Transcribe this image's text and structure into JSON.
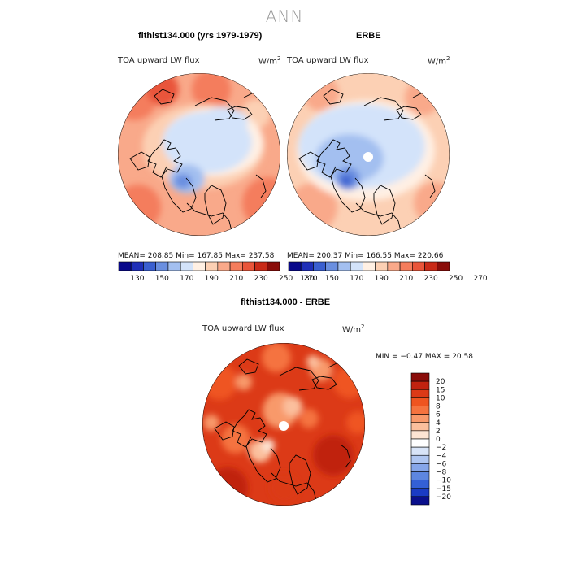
{
  "page": {
    "title": "ANN"
  },
  "panels": [
    {
      "title": "flthist134.000 (yrs 1979-1979)",
      "subtitle": "TOA upward LW flux",
      "units": "W/m",
      "units_sup": "2",
      "stats": "MEAN=  208.85   Min=  167.85   Max=  237.58",
      "colorbar_ticks": [
        "130",
        "150",
        "170",
        "190",
        "210",
        "230",
        "250",
        "270"
      ]
    },
    {
      "title": "ERBE",
      "subtitle": "TOA upward LW flux",
      "units": "W/m",
      "units_sup": "2",
      "stats": "MEAN=  200.37   Min=  166.55   Max=  220.66",
      "colorbar_ticks": [
        "130",
        "150",
        "170",
        "190",
        "210",
        "230",
        "250",
        "270"
      ]
    },
    {
      "title": "flthist134.000 - ERBE",
      "subtitle": "TOA upward LW flux",
      "units": "W/m",
      "units_sup": "2",
      "stats": "MIN =   −0.47  MAX =   20.58",
      "colorbar_ticks": [
        "20",
        "15",
        "10",
        "8",
        "6",
        "4",
        "2",
        "0",
        "−2",
        "−4",
        "−6",
        "−8",
        "−10",
        "−15",
        "−20"
      ]
    }
  ],
  "colors": {
    "abs_scale": [
      "#08088a",
      "#1f2fb8",
      "#3a5fd0",
      "#6a8fe0",
      "#a3bff0",
      "#d3e3fa",
      "#fff0e4",
      "#fcd0b4",
      "#f9a98a",
      "#f47d5d",
      "#e9553a",
      "#c92a17",
      "#8a0d0a"
    ],
    "diff_scale": [
      "#8a0d0a",
      "#c0220f",
      "#dc3a17",
      "#ef5420",
      "#f5733f",
      "#f8996b",
      "#fbbf9d",
      "#fde4d3",
      "#ffffff",
      "#d8e4f8",
      "#afc6f1",
      "#86a6e9",
      "#5d86e0",
      "#3460d6",
      "#1a3bc4",
      "#0a0f8c"
    ]
  }
}
